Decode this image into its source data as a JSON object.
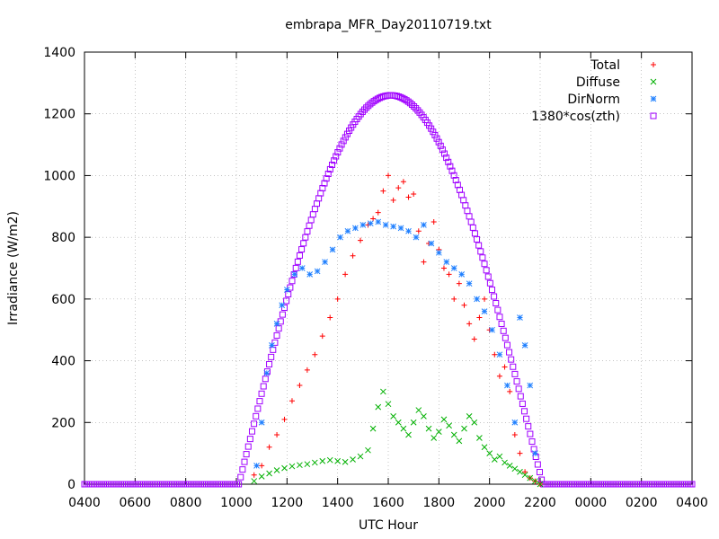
{
  "chart_data": {
    "type": "scatter",
    "title": "embrapa_MFR_Day20110719.txt",
    "xlabel": "UTC Hour",
    "ylabel": "Irradiance (W/m2)",
    "x_tick_labels": [
      "0400",
      "0600",
      "0800",
      "1000",
      "1200",
      "1400",
      "1600",
      "1800",
      "2000",
      "2200",
      "0000",
      "0200",
      "0400"
    ],
    "xlim_hours": [
      4,
      28
    ],
    "ylim": [
      0,
      1400
    ],
    "y_ticks": [
      0,
      200,
      400,
      600,
      800,
      1000,
      1200,
      1400
    ],
    "grid": true,
    "legend_position": "top-right",
    "series": [
      {
        "name": "Total",
        "marker": "+",
        "color": "#ff0000",
        "x_hours": [
          10.7,
          11.0,
          11.3,
          11.6,
          11.9,
          12.2,
          12.5,
          12.8,
          13.1,
          13.4,
          13.7,
          14.0,
          14.3,
          14.6,
          14.9,
          15.2,
          15.4,
          15.6,
          15.8,
          16.0,
          16.2,
          16.4,
          16.6,
          16.8,
          17.0,
          17.2,
          17.4,
          17.6,
          17.8,
          18.0,
          18.2,
          18.4,
          18.6,
          18.8,
          19.0,
          19.2,
          19.4,
          19.6,
          19.8,
          20.0,
          20.2,
          20.4,
          20.6,
          20.8,
          21.0,
          21.2,
          21.4,
          21.6,
          21.8,
          22.0
        ],
        "y": [
          30,
          60,
          120,
          160,
          210,
          270,
          320,
          370,
          420,
          480,
          540,
          600,
          680,
          740,
          790,
          840,
          860,
          880,
          950,
          1000,
          920,
          960,
          980,
          930,
          940,
          820,
          720,
          780,
          850,
          760,
          700,
          680,
          600,
          650,
          580,
          520,
          470,
          540,
          600,
          500,
          420,
          350,
          380,
          300,
          160,
          100,
          40,
          20,
          10,
          0
        ]
      },
      {
        "name": "Diffuse",
        "marker": "x",
        "color": "#00b000",
        "x_hours": [
          10.7,
          11.0,
          11.3,
          11.6,
          11.9,
          12.2,
          12.5,
          12.8,
          13.1,
          13.4,
          13.7,
          14.0,
          14.3,
          14.6,
          14.9,
          15.2,
          15.4,
          15.6,
          15.8,
          16.0,
          16.2,
          16.4,
          16.6,
          16.8,
          17.0,
          17.2,
          17.4,
          17.6,
          17.8,
          18.0,
          18.2,
          18.4,
          18.6,
          18.8,
          19.0,
          19.2,
          19.4,
          19.6,
          19.8,
          20.0,
          20.2,
          20.4,
          20.6,
          20.8,
          21.0,
          21.2,
          21.4,
          21.6,
          21.8,
          22.0
        ],
        "y": [
          10,
          25,
          35,
          45,
          52,
          58,
          62,
          65,
          70,
          75,
          78,
          75,
          72,
          80,
          90,
          110,
          180,
          250,
          300,
          260,
          220,
          200,
          180,
          160,
          200,
          240,
          220,
          180,
          150,
          170,
          210,
          190,
          160,
          140,
          180,
          220,
          200,
          150,
          120,
          100,
          80,
          90,
          70,
          60,
          50,
          40,
          30,
          20,
          10,
          0
        ]
      },
      {
        "name": "DirNorm",
        "marker": "*",
        "color": "#2080ff",
        "x_hours": [
          10.8,
          11.0,
          11.2,
          11.4,
          11.6,
          11.8,
          12.0,
          12.3,
          12.6,
          12.9,
          13.2,
          13.5,
          13.8,
          14.1,
          14.4,
          14.7,
          15.0,
          15.3,
          15.6,
          15.9,
          16.2,
          16.5,
          16.8,
          17.1,
          17.4,
          17.7,
          18.0,
          18.3,
          18.6,
          18.9,
          19.2,
          19.5,
          19.8,
          20.1,
          20.4,
          20.7,
          21.0,
          21.2,
          21.4,
          21.6,
          21.8
        ],
        "y": [
          60,
          200,
          360,
          450,
          520,
          580,
          630,
          680,
          700,
          680,
          690,
          720,
          760,
          800,
          820,
          830,
          840,
          845,
          850,
          840,
          835,
          830,
          820,
          800,
          840,
          780,
          750,
          720,
          700,
          680,
          650,
          600,
          560,
          500,
          420,
          320,
          200,
          540,
          450,
          320,
          100
        ]
      },
      {
        "name": "1380*cos(zth)",
        "marker": "square",
        "color": "#a000ff",
        "points": 320
      }
    ]
  }
}
